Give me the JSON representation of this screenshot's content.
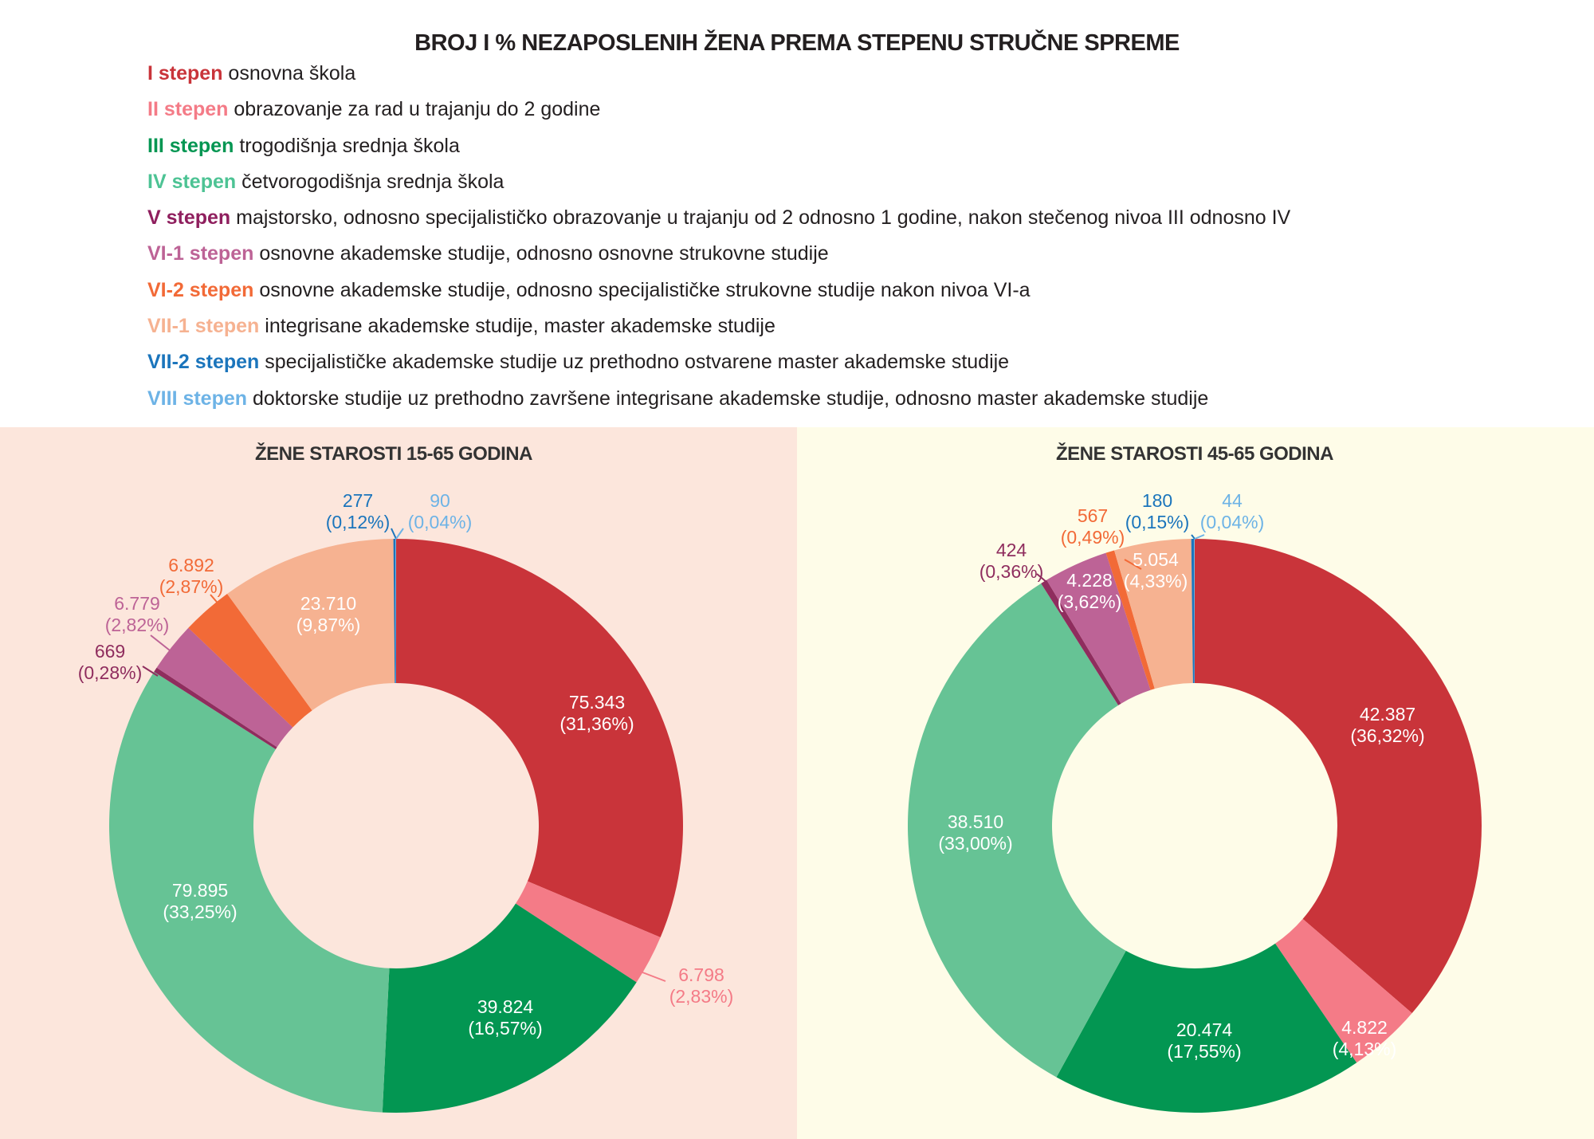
{
  "title": "BROJ I % NEZAPOSLENIH ŽENA PREMA STEPENU STRUČNE SPREME",
  "legend": [
    {
      "key": "I stepen",
      "text": "osnovna škola",
      "color": "#c9343a"
    },
    {
      "key": "II stepen",
      "text": "obrazovanje za rad u trajanju do 2 godine",
      "color": "#f47b87"
    },
    {
      "key": "III stepen",
      "text": "trogodišnja srednja škola",
      "color": "#039652"
    },
    {
      "key": "IV stepen",
      "text": "četvorogodišnja srednja škola",
      "color": "#4dc394"
    },
    {
      "key": "V stepen",
      "text": "majstorsko, odnosno specijalističko obrazovanje u trajanju od 2 odnosno 1 godine, nakon stečenog nivoa III odnosno IV",
      "color": "#8f1f5e"
    },
    {
      "key": "VI-1 stepen",
      "text": "osnovne akademske studije, odnosno osnovne strukovne studije",
      "color": "#bd6396"
    },
    {
      "key": "VI-2 stepen",
      "text": "osnovne akademske studije, odnosno specijalističke strukovne studije nakon nivoa VI-a",
      "color": "#f26a37"
    },
    {
      "key": "VII-1 stepen",
      "text": "integrisane akademske studije, master akademske studije",
      "color": "#f6b291"
    },
    {
      "key": "VII-2 stepen",
      "text": "specijalističke akademske studije uz prethodno ostvarene master akademske studije",
      "color": "#1b75bc"
    },
    {
      "key": "VIII stepen",
      "text": "doktorske studije uz prethodno završene integrisane akademske studije, odnosno master akademske studije",
      "color": "#6db3e6"
    }
  ],
  "chart_data": [
    {
      "type": "pie",
      "donut": true,
      "title": "ŽENE STAROSTI 15-65 GODINA",
      "background": "#fce6dc",
      "categories": [
        "I stepen",
        "II stepen",
        "III stepen",
        "IV stepen",
        "V stepen",
        "VI-1 stepen",
        "VI-2 stepen",
        "VII-1 stepen",
        "VII-2 stepen",
        "VIII stepen"
      ],
      "values": [
        75343,
        6798,
        39824,
        79895,
        669,
        6779,
        6892,
        23710,
        277,
        90
      ],
      "value_labels": [
        "75.343",
        "6.798",
        "39.824",
        "79.895",
        "669",
        "6.779",
        "6.892",
        "23.710",
        "277",
        "90"
      ],
      "percent_labels": [
        "(31,36%)",
        "(2,83%)",
        "(16,57%)",
        "(33,25%)",
        "(0,28%)",
        "(2,82%)",
        "(2,87%)",
        "(9,87%)",
        "(0,12%)",
        "(0,04%)"
      ],
      "colors": [
        "#c9343a",
        "#f47b87",
        "#039652",
        "#66c395",
        "#8f2d5e",
        "#bd6396",
        "#f26a37",
        "#f6b291",
        "#1b75bc",
        "#6db3e6"
      ]
    },
    {
      "type": "pie",
      "donut": true,
      "title": "ŽENE STAROSTI 45-65 GODINA",
      "background": "#fefce8",
      "categories": [
        "I stepen",
        "II stepen",
        "III stepen",
        "IV stepen",
        "V stepen",
        "VI-1 stepen",
        "VI-2 stepen",
        "VII-1 stepen",
        "VII-2 stepen",
        "VIII stepen"
      ],
      "values": [
        42387,
        4822,
        20474,
        38510,
        424,
        4228,
        567,
        5054,
        180,
        44
      ],
      "value_labels": [
        "42.387",
        "4.822",
        "20.474",
        "38.510",
        "424",
        "4.228",
        "567",
        "5.054",
        "180",
        "44"
      ],
      "percent_labels": [
        "(36,32%)",
        "(4,13%)",
        "(17,55%)",
        "(33,00%)",
        "(0,36%)",
        "(3,62%)",
        "(0,49%)",
        "(4,33%)",
        "(0,15%)",
        "(0,04%)"
      ],
      "colors": [
        "#c9343a",
        "#f47b87",
        "#039652",
        "#66c395",
        "#8f2d5e",
        "#bd6396",
        "#f26a37",
        "#f6b291",
        "#1b75bc",
        "#6db3e6"
      ]
    }
  ]
}
